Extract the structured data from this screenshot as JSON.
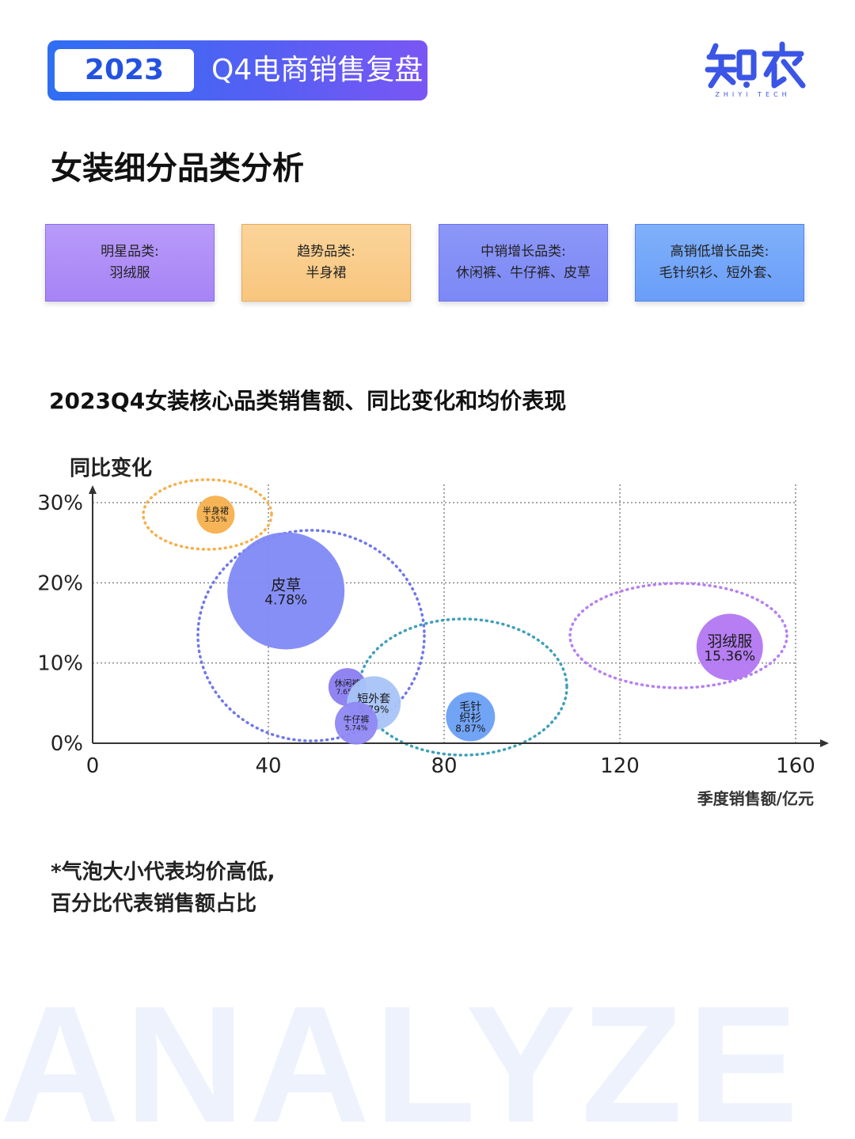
{
  "header": {
    "year": "2023",
    "title": "Q4电商销售复盘"
  },
  "logo": {
    "name": "知衣",
    "sub": "ZHIYI TECH"
  },
  "section_title": "女装细分品类分析",
  "cards": [
    {
      "title": "明星品类:",
      "items": "羽绒服"
    },
    {
      "title": "趋势品类:",
      "items": "半身裙"
    },
    {
      "title": "中销增长品类:",
      "items": "休闲裤、牛仔裤、皮草"
    },
    {
      "title": "高销低增长品类:",
      "items": "毛针织衫、短外套、"
    }
  ],
  "chart_title": "2023Q4女装核心品类销售额、同比变化和均价表现",
  "chart_data": {
    "type": "scatter",
    "xlabel": "季度销售额/亿元",
    "ylabel": "同比变化",
    "xlim": [
      0,
      160
    ],
    "ylim": [
      0,
      30
    ],
    "x_ticks": [
      "0",
      "40",
      "80",
      "120",
      "160"
    ],
    "y_ticks": [
      "0%",
      "10%",
      "20%",
      "30%"
    ],
    "grid": true,
    "points": [
      {
        "label": "半身裙",
        "share": "3.55%",
        "x": 28,
        "y": 28.5,
        "size": 24,
        "color": "#f6b04e"
      },
      {
        "label": "皮草",
        "share": "4.78%",
        "x": 44,
        "y": 19,
        "size": 74,
        "color": "#8089f5"
      },
      {
        "label": "休闲裤",
        "share": "7.65%",
        "x": 58,
        "y": 7,
        "size": 24,
        "color": "#8a7df2"
      },
      {
        "label": "短外套",
        "share": "5.79%",
        "x": 64,
        "y": 5,
        "size": 34,
        "color": "#a8c4f7"
      },
      {
        "label": "牛仔裤",
        "share": "5.74%",
        "x": 60,
        "y": 2.5,
        "size": 27,
        "color": "#8f88f4"
      },
      {
        "label": "毛针织衫",
        "share": "8.87%",
        "x": 86,
        "y": 3.3,
        "size": 31,
        "color": "#6a9ff6"
      },
      {
        "label": "羽绒服",
        "share": "15.36%",
        "x": 145,
        "y": 12,
        "size": 42,
        "color": "#b277f1"
      }
    ],
    "groups": [
      {
        "name": "明星品类",
        "color": "#b57ff0"
      },
      {
        "name": "趋势品类",
        "color": "#f6b04e"
      },
      {
        "name": "中销增长品类",
        "color": "#6f77ea"
      },
      {
        "name": "高销低增长品类",
        "color": "#3f9fb8"
      }
    ]
  },
  "footnote": {
    "line1": "*气泡大小代表均价高低,",
    "line2": "百分比代表销售额占比"
  },
  "watermark": "ANALYZE"
}
